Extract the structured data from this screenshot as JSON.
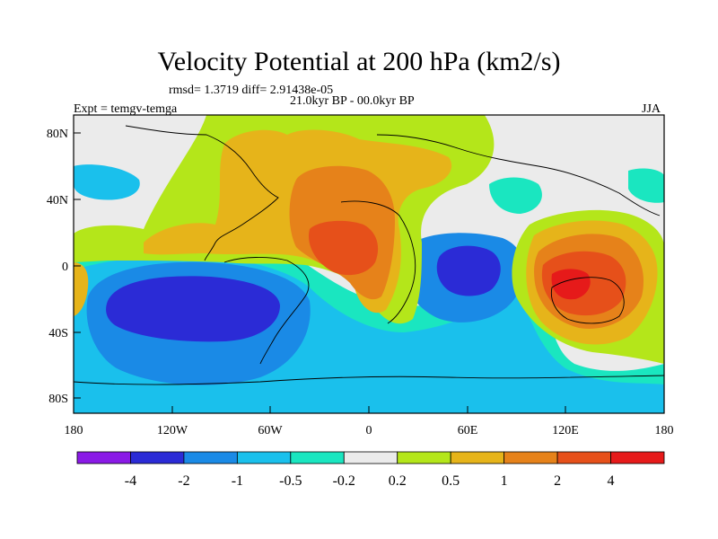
{
  "title": "Velocity Potential at 200 hPa (km2/s)",
  "stats": "rmsd= 1.3719 diff= 2.91438e-05",
  "period": "21.0kyr BP - 00.0kyr BP",
  "expt": "Expt = temgv-temga",
  "season": "JJA",
  "lat_ticks": [
    "80N",
    "40N",
    "0",
    "40S",
    "80S"
  ],
  "lon_ticks": [
    "180",
    "120W",
    "60W",
    "0",
    "60E",
    "120E",
    "180"
  ],
  "colorbar": {
    "labels": [
      "-4",
      "-2",
      "-1",
      "-0.5",
      "-0.2",
      "0.2",
      "0.5",
      "1",
      "2",
      "4"
    ],
    "colors": [
      "#8a1ae6",
      "#2b2bd6",
      "#1a8ae6",
      "#1ac0ec",
      "#1ae6c0",
      "#ebebeb",
      "#b4e61a",
      "#e6b41a",
      "#e6821a",
      "#e6501a",
      "#e61a1a"
    ]
  },
  "palette": {
    "neg4": "#2b2bd6",
    "neg2": "#1a8ae6",
    "neg1": "#1ac0ec",
    "neg05": "#1ae6c0",
    "zero": "#ebebeb",
    "pos02": "#b4e61a",
    "pos05": "#e6b41a",
    "pos1": "#e6821a",
    "pos2": "#e6501a",
    "pos4": "#e61a1a"
  }
}
